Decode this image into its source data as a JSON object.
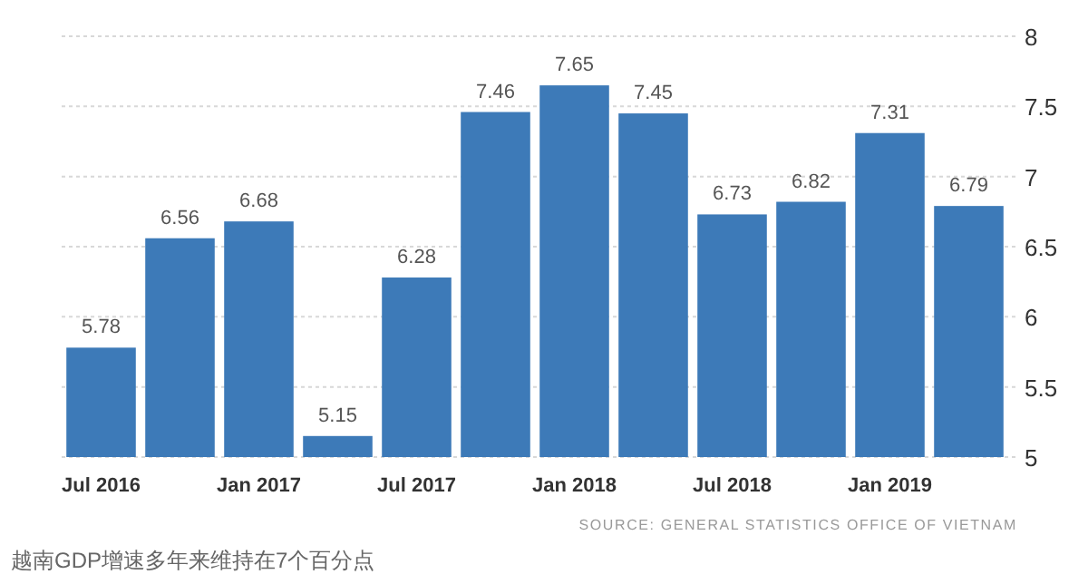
{
  "chart_data": {
    "type": "bar",
    "categories": [
      "Jul 2016",
      null,
      "Jan 2017",
      null,
      "Jul 2017",
      null,
      "Jan 2018",
      null,
      "Jul 2018",
      null,
      "Jan 2019",
      null
    ],
    "values": [
      5.78,
      6.56,
      6.68,
      5.15,
      6.28,
      7.46,
      7.65,
      7.45,
      6.73,
      6.82,
      7.31,
      6.79
    ],
    "color": "#3d7ab8",
    "data_labels": true,
    "ylim": [
      5,
      8
    ],
    "yticks": [
      5,
      5.5,
      6,
      6.5,
      7,
      7.5,
      8
    ],
    "grid": "y",
    "annotations": [
      "SOURCE: GENERAL STATISTICS OFFICE OF VIETNAM",
      "越南GDP增速多年来维持在7个百分点"
    ]
  }
}
